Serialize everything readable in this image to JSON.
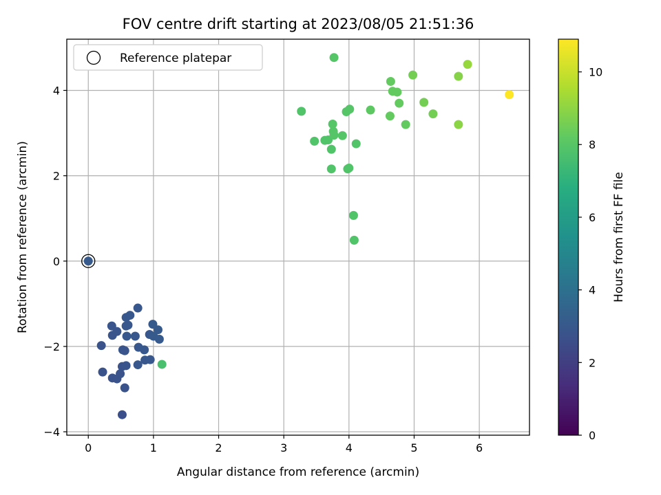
{
  "chart_data": {
    "type": "scatter",
    "title": "FOV centre drift starting at 2023/08/05 21:51:36",
    "xlabel": "Angular distance from reference (arcmin)",
    "ylabel": "Rotation from reference (arcmin)",
    "xlim": [
      -0.33,
      6.77
    ],
    "ylim": [
      -4.08,
      5.2
    ],
    "xticks": [
      0,
      1,
      2,
      3,
      4,
      5,
      6
    ],
    "yticks": [
      -4,
      -2,
      0,
      2,
      4
    ],
    "grid": true,
    "legend": {
      "placement": "top-left",
      "entries": [
        "Reference platepar"
      ]
    },
    "reference_point": {
      "x": 0,
      "y": 0,
      "label": "Reference platepar"
    },
    "colorbar": {
      "label": "Hours from first FF file",
      "range": [
        0,
        10.9
      ],
      "ticks": [
        0,
        2,
        4,
        6,
        8,
        10
      ],
      "colormap": "viridis"
    },
    "points": [
      {
        "x": 0.0,
        "y": 0.0,
        "c": 3.1
      },
      {
        "x": 0.2,
        "y": -1.98,
        "c": 2.8
      },
      {
        "x": 0.22,
        "y": -2.6,
        "c": 2.8
      },
      {
        "x": 0.36,
        "y": -1.52,
        "c": 2.9
      },
      {
        "x": 0.37,
        "y": -1.74,
        "c": 2.9
      },
      {
        "x": 0.44,
        "y": -1.65,
        "c": 2.9
      },
      {
        "x": 0.37,
        "y": -2.74,
        "c": 2.8
      },
      {
        "x": 0.44,
        "y": -2.76,
        "c": 2.8
      },
      {
        "x": 0.49,
        "y": -2.64,
        "c": 2.8
      },
      {
        "x": 0.52,
        "y": -2.47,
        "c": 2.8
      },
      {
        "x": 0.53,
        "y": -2.08,
        "c": 2.9
      },
      {
        "x": 0.56,
        "y": -2.1,
        "c": 2.9
      },
      {
        "x": 0.58,
        "y": -2.45,
        "c": 2.9
      },
      {
        "x": 0.56,
        "y": -2.97,
        "c": 2.8
      },
      {
        "x": 0.52,
        "y": -3.6,
        "c": 2.7
      },
      {
        "x": 0.58,
        "y": -1.32,
        "c": 3.0
      },
      {
        "x": 0.58,
        "y": -1.52,
        "c": 3.0
      },
      {
        "x": 0.61,
        "y": -1.5,
        "c": 3.0
      },
      {
        "x": 0.59,
        "y": -1.76,
        "c": 3.0
      },
      {
        "x": 0.64,
        "y": -1.27,
        "c": 3.0
      },
      {
        "x": 0.72,
        "y": -1.76,
        "c": 3.0
      },
      {
        "x": 0.76,
        "y": -1.1,
        "c": 3.0
      },
      {
        "x": 0.77,
        "y": -2.02,
        "c": 3.0
      },
      {
        "x": 0.76,
        "y": -2.43,
        "c": 3.0
      },
      {
        "x": 0.86,
        "y": -2.08,
        "c": 3.0
      },
      {
        "x": 0.87,
        "y": -2.32,
        "c": 3.0
      },
      {
        "x": 0.94,
        "y": -1.72,
        "c": 3.0
      },
      {
        "x": 0.95,
        "y": -2.31,
        "c": 3.0
      },
      {
        "x": 0.99,
        "y": -1.48,
        "c": 3.1
      },
      {
        "x": 1.0,
        "y": -1.76,
        "c": 3.1
      },
      {
        "x": 1.07,
        "y": -1.61,
        "c": 3.1
      },
      {
        "x": 1.09,
        "y": -1.83,
        "c": 3.1
      },
      {
        "x": 1.13,
        "y": -2.42,
        "c": 7.7
      },
      {
        "x": 3.27,
        "y": 3.51,
        "c": 7.9
      },
      {
        "x": 3.47,
        "y": 2.81,
        "c": 7.9
      },
      {
        "x": 3.63,
        "y": 2.83,
        "c": 7.9
      },
      {
        "x": 3.68,
        "y": 2.84,
        "c": 7.9
      },
      {
        "x": 3.73,
        "y": 2.62,
        "c": 7.9
      },
      {
        "x": 3.73,
        "y": 2.16,
        "c": 7.9
      },
      {
        "x": 3.75,
        "y": 3.21,
        "c": 8.0
      },
      {
        "x": 3.76,
        "y": 3.04,
        "c": 8.0
      },
      {
        "x": 3.77,
        "y": 2.95,
        "c": 8.0
      },
      {
        "x": 3.77,
        "y": 4.77,
        "c": 8.0
      },
      {
        "x": 3.9,
        "y": 2.94,
        "c": 8.0
      },
      {
        "x": 3.96,
        "y": 3.5,
        "c": 8.0
      },
      {
        "x": 4.01,
        "y": 3.56,
        "c": 8.0
      },
      {
        "x": 3.98,
        "y": 2.16,
        "c": 7.9
      },
      {
        "x": 4.0,
        "y": 2.18,
        "c": 7.9
      },
      {
        "x": 4.07,
        "y": 1.07,
        "c": 7.9
      },
      {
        "x": 4.08,
        "y": 0.49,
        "c": 7.9
      },
      {
        "x": 4.11,
        "y": 2.75,
        "c": 7.9
      },
      {
        "x": 4.33,
        "y": 3.54,
        "c": 8.2
      },
      {
        "x": 4.63,
        "y": 3.4,
        "c": 8.3
      },
      {
        "x": 4.64,
        "y": 4.21,
        "c": 8.3
      },
      {
        "x": 4.67,
        "y": 3.98,
        "c": 8.3
      },
      {
        "x": 4.74,
        "y": 3.96,
        "c": 8.3
      },
      {
        "x": 4.77,
        "y": 3.7,
        "c": 8.3
      },
      {
        "x": 4.87,
        "y": 3.2,
        "c": 8.3
      },
      {
        "x": 4.98,
        "y": 4.36,
        "c": 8.6
      },
      {
        "x": 5.15,
        "y": 3.72,
        "c": 8.6
      },
      {
        "x": 5.29,
        "y": 3.45,
        "c": 8.6
      },
      {
        "x": 5.68,
        "y": 4.33,
        "c": 8.9
      },
      {
        "x": 5.68,
        "y": 3.2,
        "c": 9.0
      },
      {
        "x": 5.82,
        "y": 4.61,
        "c": 9.2
      },
      {
        "x": 6.46,
        "y": 3.9,
        "c": 10.9
      }
    ]
  }
}
